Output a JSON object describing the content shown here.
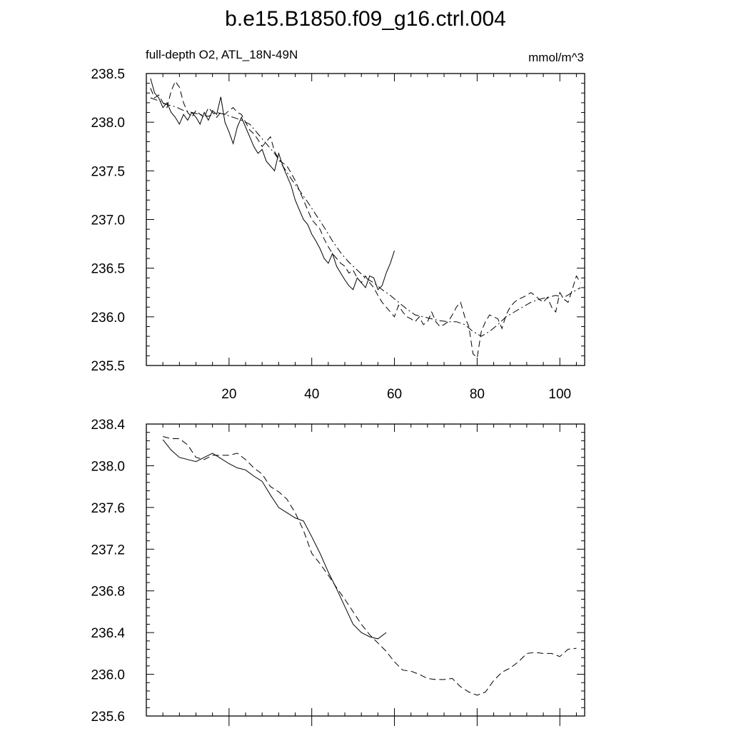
{
  "page": {
    "title": "b.e15.B1850.f09_g16.ctrl.004",
    "left_string": "full-depth O2, ATL_18N-49N",
    "right_string": "mmol/m^3"
  },
  "chart_data": [
    {
      "type": "line",
      "title": "b.e15.B1850.f09_g16.ctrl.004",
      "subtitle_left": "full-depth O2, ATL_18N-49N",
      "subtitle_right": "mmol/m^3",
      "xlim": [
        0,
        106
      ],
      "ylim": [
        235.5,
        238.5
      ],
      "x_ticks": [
        20,
        40,
        60,
        80,
        100
      ],
      "y_ticks": [
        235.5,
        236.0,
        236.5,
        237.0,
        237.5,
        238.0,
        238.5
      ],
      "y_tick_labels": [
        "235.5",
        "236.0",
        "236.5",
        "237.0",
        "237.5",
        "238.0",
        "238.5"
      ],
      "grid": false,
      "series": [
        {
          "style": "solid",
          "x": [
            1,
            2,
            3,
            4,
            5,
            6,
            7,
            8,
            9,
            10,
            11,
            12,
            13,
            14,
            15,
            16,
            17,
            18,
            19,
            20,
            21,
            22,
            23,
            24,
            25,
            26,
            27,
            28,
            29,
            30,
            31,
            32,
            33,
            34,
            35,
            36,
            37,
            38,
            39,
            40,
            41,
            42,
            43,
            44,
            45,
            46,
            47,
            48,
            49,
            50,
            51,
            52,
            53,
            54,
            55,
            56,
            57,
            58,
            59,
            60
          ],
          "values": [
            238.45,
            238.3,
            238.25,
            238.15,
            238.2,
            238.1,
            238.05,
            237.98,
            238.08,
            238.02,
            238.1,
            238.05,
            237.98,
            238.1,
            238.02,
            238.12,
            238.08,
            238.26,
            238.0,
            237.9,
            237.78,
            237.95,
            238.05,
            237.95,
            237.85,
            237.75,
            237.68,
            237.72,
            237.6,
            237.55,
            237.5,
            237.68,
            237.55,
            237.45,
            237.35,
            237.2,
            237.1,
            237.0,
            236.95,
            236.85,
            236.78,
            236.7,
            236.6,
            236.55,
            236.65,
            236.52,
            236.45,
            236.38,
            236.32,
            236.28,
            236.4,
            236.35,
            236.3,
            236.42,
            236.4,
            236.28,
            236.32,
            236.45,
            236.55,
            236.68
          ]
        },
        {
          "style": "dashed",
          "x": [
            1,
            2,
            3,
            4,
            5,
            6,
            7,
            8,
            9,
            10,
            11,
            12,
            13,
            14,
            15,
            16,
            17,
            18,
            19,
            20,
            21,
            22,
            23,
            24,
            25,
            26,
            27,
            28,
            29,
            30,
            31,
            32,
            33,
            34,
            35,
            36,
            37,
            38,
            39,
            40,
            41,
            42,
            43,
            44,
            45,
            46,
            47,
            48,
            49,
            50,
            51,
            52,
            53,
            54,
            55,
            56,
            57,
            58,
            59,
            60,
            61,
            62,
            63,
            64,
            65,
            66,
            67,
            68,
            69,
            70,
            71,
            72,
            73,
            74,
            75,
            76,
            77,
            78,
            79,
            80,
            81,
            82,
            83,
            84,
            85,
            86,
            87,
            88,
            89,
            90,
            91,
            92,
            93,
            94,
            95,
            96,
            97,
            98,
            99,
            100,
            101,
            102,
            103,
            104,
            105
          ],
          "values": [
            238.35,
            238.25,
            238.28,
            238.2,
            238.15,
            238.32,
            238.42,
            238.36,
            238.2,
            238.1,
            238.05,
            238.12,
            238.08,
            238.05,
            238.15,
            238.1,
            238.05,
            238.1,
            238.08,
            238.12,
            238.15,
            238.1,
            238.08,
            238.0,
            237.92,
            237.88,
            237.82,
            237.75,
            237.8,
            237.85,
            237.7,
            237.62,
            237.58,
            237.55,
            237.48,
            237.4,
            237.3,
            237.2,
            237.1,
            237.0,
            236.95,
            236.9,
            236.8,
            236.72,
            236.65,
            236.6,
            236.55,
            236.52,
            236.45,
            236.48,
            236.4,
            236.35,
            236.42,
            236.35,
            236.3,
            236.22,
            236.15,
            236.1,
            236.05,
            236.0,
            236.12,
            236.05,
            236.0,
            235.98,
            235.95,
            236.0,
            235.92,
            235.95,
            236.05,
            235.95,
            235.9,
            235.92,
            235.95,
            236.02,
            236.1,
            236.15,
            236.0,
            235.9,
            235.62,
            235.58,
            235.85,
            235.95,
            236.02,
            236.0,
            235.98,
            235.88,
            236.02,
            236.1,
            236.15,
            236.18,
            236.2,
            236.22,
            236.25,
            236.22,
            236.18,
            236.15,
            236.2,
            236.1,
            236.05,
            236.25,
            236.18,
            236.15,
            236.28,
            236.42,
            236.35
          ]
        },
        {
          "style": "dashdot",
          "x": [
            1,
            3,
            5,
            7,
            9,
            11,
            13,
            15,
            17,
            19,
            21,
            23,
            25,
            27,
            29,
            31,
            33,
            35,
            37,
            39,
            41,
            43,
            45,
            47,
            49,
            51,
            53,
            55,
            57,
            59,
            61,
            63,
            65,
            67,
            69,
            71,
            73,
            75,
            77,
            79,
            81,
            83,
            85,
            87,
            89,
            91,
            93,
            95,
            97,
            99,
            101,
            103,
            105
          ],
          "values": [
            238.25,
            238.22,
            238.18,
            238.16,
            238.12,
            238.1,
            238.08,
            238.06,
            238.1,
            238.08,
            238.05,
            238.02,
            237.98,
            237.88,
            237.78,
            237.68,
            237.55,
            237.42,
            237.3,
            237.18,
            237.05,
            236.92,
            236.78,
            236.66,
            236.56,
            236.48,
            236.4,
            236.35,
            236.28,
            236.22,
            236.15,
            236.08,
            236.02,
            236.0,
            235.98,
            235.96,
            235.95,
            235.95,
            235.92,
            235.85,
            235.8,
            235.85,
            235.92,
            236.0,
            236.05,
            236.1,
            236.15,
            236.18,
            236.2,
            236.22,
            236.2,
            236.25,
            236.3
          ]
        }
      ]
    },
    {
      "type": "line",
      "xlim": [
        0,
        106
      ],
      "ylim": [
        235.6,
        238.4
      ],
      "x_ticks": [
        20,
        40,
        60,
        80,
        100
      ],
      "y_ticks": [
        235.6,
        236.0,
        236.4,
        236.8,
        237.2,
        237.6,
        238.0,
        238.4
      ],
      "y_tick_labels": [
        "235.6",
        "236.0",
        "236.4",
        "236.8",
        "237.2",
        "237.6",
        "238.0",
        "238.4"
      ],
      "grid": false,
      "series": [
        {
          "style": "solid",
          "x": [
            4,
            6,
            8,
            10,
            12,
            14,
            16,
            18,
            20,
            22,
            24,
            26,
            28,
            30,
            32,
            34,
            36,
            38,
            40,
            42,
            44,
            46,
            48,
            50,
            52,
            54,
            56,
            58
          ],
          "values": [
            238.25,
            238.15,
            238.08,
            238.06,
            238.04,
            238.08,
            238.12,
            238.07,
            238.02,
            237.98,
            237.96,
            237.9,
            237.85,
            237.72,
            237.6,
            237.55,
            237.5,
            237.47,
            237.32,
            237.16,
            236.98,
            236.82,
            236.65,
            236.48,
            236.4,
            236.36,
            236.34,
            236.4
          ]
        },
        {
          "style": "dashed",
          "x": [
            4,
            6,
            8,
            10,
            12,
            14,
            16,
            18,
            20,
            22,
            24,
            26,
            28,
            30,
            32,
            34,
            36,
            38,
            40,
            42,
            44,
            46,
            48,
            50,
            52,
            54,
            56,
            58,
            60,
            62,
            64,
            66,
            68,
            70,
            72,
            74,
            76,
            78,
            80,
            82,
            84,
            86,
            88,
            90,
            92,
            94,
            96,
            98,
            100,
            102,
            104
          ],
          "values": [
            238.28,
            238.26,
            238.26,
            238.2,
            238.08,
            238.06,
            238.1,
            238.1,
            238.1,
            238.12,
            238.06,
            237.98,
            237.92,
            237.8,
            237.75,
            237.68,
            237.55,
            237.38,
            237.16,
            237.06,
            236.95,
            236.83,
            236.72,
            236.6,
            236.48,
            236.38,
            236.3,
            236.22,
            236.12,
            236.04,
            236.03,
            236.0,
            235.96,
            235.95,
            235.95,
            235.96,
            235.88,
            235.83,
            235.8,
            235.83,
            235.94,
            236.02,
            236.06,
            236.12,
            236.2,
            236.21,
            236.2,
            236.2,
            236.17,
            236.24,
            236.25
          ]
        }
      ]
    }
  ]
}
